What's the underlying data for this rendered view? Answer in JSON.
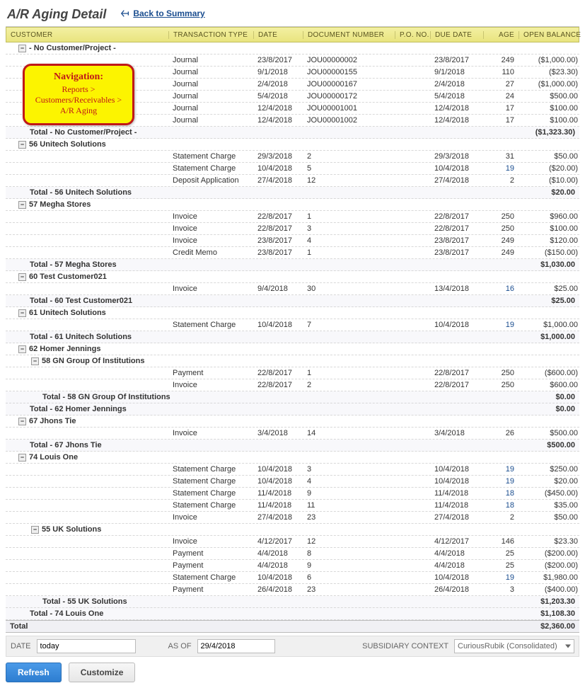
{
  "page": {
    "title": "A/R Aging Detail",
    "back_link": "Back to Summary"
  },
  "callout": {
    "title": "Navigation:",
    "text": "Reports > Customers/Receivables > A/R Aging"
  },
  "columns": {
    "customer": "CUSTOMER",
    "txn_type": "TRANSACTION TYPE",
    "date": "DATE",
    "doc_num": "DOCUMENT NUMBER",
    "po": "P.O. NO.",
    "due_date": "DUE DATE",
    "age": "AGE",
    "open_balance": "OPEN BALANCE"
  },
  "groups": [
    {
      "name": "- No Customer/Project -",
      "level": 0,
      "rows": [
        {
          "txn_type": "Journal",
          "date": "23/8/2017",
          "doc": "JOU00000002",
          "due": "23/8/2017",
          "age": "249",
          "bal": "($1,000.00)"
        },
        {
          "txn_type": "Journal",
          "date": "9/1/2018",
          "doc": "JOU00000155",
          "due": "9/1/2018",
          "age": "110",
          "bal": "($23.30)"
        },
        {
          "txn_type": "Journal",
          "date": "2/4/2018",
          "doc": "JOU00000167",
          "due": "2/4/2018",
          "age": "27",
          "bal": "($1,000.00)"
        },
        {
          "txn_type": "Journal",
          "date": "5/4/2018",
          "doc": "JOU00000172",
          "due": "5/4/2018",
          "age": "24",
          "bal": "$500.00"
        },
        {
          "txn_type": "Journal",
          "date": "12/4/2018",
          "doc": "JOU00001001",
          "due": "12/4/2018",
          "age": "17",
          "bal": "$100.00"
        },
        {
          "txn_type": "Journal",
          "date": "12/4/2018",
          "doc": "JOU00001002",
          "due": "12/4/2018",
          "age": "17",
          "bal": "$100.00"
        }
      ],
      "total_label": "Total - No Customer/Project -",
      "total": "($1,323.30)"
    },
    {
      "name": "56 Unitech Solutions",
      "level": 0,
      "rows": [
        {
          "txn_type": "Statement Charge",
          "date": "29/3/2018",
          "doc": "2",
          "due": "29/3/2018",
          "age": "31",
          "bal": "$50.00"
        },
        {
          "txn_type": "Statement Charge",
          "date": "10/4/2018",
          "doc": "5",
          "due": "10/4/2018",
          "age": "19",
          "age_blue": true,
          "bal": "($20.00)"
        },
        {
          "txn_type": "Deposit Application",
          "date": "27/4/2018",
          "doc": "12",
          "due": "27/4/2018",
          "age": "2",
          "bal": "($10.00)"
        }
      ],
      "total_label": "Total - 56 Unitech Solutions",
      "total": "$20.00"
    },
    {
      "name": "57 Megha Stores",
      "level": 0,
      "rows": [
        {
          "txn_type": "Invoice",
          "date": "22/8/2017",
          "doc": "1",
          "due": "22/8/2017",
          "age": "250",
          "bal": "$960.00"
        },
        {
          "txn_type": "Invoice",
          "date": "22/8/2017",
          "doc": "3",
          "due": "22/8/2017",
          "age": "250",
          "bal": "$100.00"
        },
        {
          "txn_type": "Invoice",
          "date": "23/8/2017",
          "doc": "4",
          "due": "23/8/2017",
          "age": "249",
          "bal": "$120.00"
        },
        {
          "txn_type": "Credit Memo",
          "date": "23/8/2017",
          "doc": "1",
          "due": "23/8/2017",
          "age": "249",
          "bal": "($150.00)"
        }
      ],
      "total_label": "Total - 57 Megha Stores",
      "total": "$1,030.00"
    },
    {
      "name": "60 Test Customer021",
      "level": 0,
      "rows": [
        {
          "txn_type": "Invoice",
          "date": "9/4/2018",
          "doc": "30",
          "due": "13/4/2018",
          "age": "16",
          "age_blue": true,
          "bal": "$25.00"
        }
      ],
      "total_label": "Total - 60 Test Customer021",
      "total": "$25.00"
    },
    {
      "name": "61 Unitech Solutions",
      "level": 0,
      "rows": [
        {
          "txn_type": "Statement Charge",
          "date": "10/4/2018",
          "doc": "7",
          "due": "10/4/2018",
          "age": "19",
          "age_blue": true,
          "bal": "$1,000.00"
        }
      ],
      "total_label": "Total - 61 Unitech Solutions",
      "total": "$1,000.00"
    },
    {
      "name": "62 Homer Jennings",
      "level": 0,
      "children": [
        {
          "name": "58 GN Group Of Institutions",
          "level": 1,
          "rows": [
            {
              "txn_type": "Payment",
              "date": "22/8/2017",
              "doc": "1",
              "due": "22/8/2017",
              "age": "250",
              "bal": "($600.00)"
            },
            {
              "txn_type": "Invoice",
              "date": "22/8/2017",
              "doc": "2",
              "due": "22/8/2017",
              "age": "250",
              "bal": "$600.00"
            }
          ],
          "total_label": "Total - 58 GN Group Of Institutions",
          "total": "$0.00"
        }
      ],
      "total_label": "Total - 62 Homer Jennings",
      "total": "$0.00"
    },
    {
      "name": "67 Jhons Tie",
      "level": 0,
      "rows": [
        {
          "txn_type": "Invoice",
          "date": "3/4/2018",
          "doc": "14",
          "due": "3/4/2018",
          "age": "26",
          "bal": "$500.00"
        }
      ],
      "total_label": "Total - 67 Jhons Tie",
      "total": "$500.00"
    },
    {
      "name": "74 Louis One",
      "level": 0,
      "rows": [
        {
          "txn_type": "Statement Charge",
          "date": "10/4/2018",
          "doc": "3",
          "due": "10/4/2018",
          "age": "19",
          "age_blue": true,
          "bal": "$250.00"
        },
        {
          "txn_type": "Statement Charge",
          "date": "10/4/2018",
          "doc": "4",
          "due": "10/4/2018",
          "age": "19",
          "age_blue": true,
          "bal": "$20.00"
        },
        {
          "txn_type": "Statement Charge",
          "date": "11/4/2018",
          "doc": "9",
          "due": "11/4/2018",
          "age": "18",
          "age_blue": true,
          "bal": "($450.00)"
        },
        {
          "txn_type": "Statement Charge",
          "date": "11/4/2018",
          "doc": "11",
          "due": "11/4/2018",
          "age": "18",
          "age_blue": true,
          "bal": "$35.00"
        },
        {
          "txn_type": "Invoice",
          "date": "27/4/2018",
          "doc": "23",
          "due": "27/4/2018",
          "age": "2",
          "bal": "$50.00"
        }
      ],
      "children": [
        {
          "name": "55 UK Solutions",
          "level": 1,
          "rows": [
            {
              "txn_type": "Invoice",
              "date": "4/12/2017",
              "doc": "12",
              "due": "4/12/2017",
              "age": "146",
              "bal": "$23.30"
            },
            {
              "txn_type": "Payment",
              "date": "4/4/2018",
              "doc": "8",
              "due": "4/4/2018",
              "age": "25",
              "bal": "($200.00)"
            },
            {
              "txn_type": "Payment",
              "date": "4/4/2018",
              "doc": "9",
              "due": "4/4/2018",
              "age": "25",
              "bal": "($200.00)"
            },
            {
              "txn_type": "Statement Charge",
              "date": "10/4/2018",
              "doc": "6",
              "due": "10/4/2018",
              "age": "19",
              "age_blue": true,
              "bal": "$1,980.00"
            },
            {
              "txn_type": "Payment",
              "date": "26/4/2018",
              "doc": "23",
              "due": "26/4/2018",
              "age": "3",
              "bal": "($400.00)"
            }
          ],
          "total_label": "Total - 55 UK Solutions",
          "total": "$1,203.30"
        }
      ],
      "total_label": "Total - 74 Louis One",
      "total": "$1,108.30"
    }
  ],
  "grand_total_label": "Total",
  "grand_total": "$2,360.00",
  "footer": {
    "date_label": "DATE",
    "date_value": "today",
    "asof_label": "AS OF",
    "asof_value": "29/4/2018",
    "subsidiary_label": "SUBSIDIARY CONTEXT",
    "subsidiary_value": "CuriousRubik (Consolidated)"
  },
  "buttons": {
    "refresh": "Refresh",
    "customize": "Customize"
  }
}
